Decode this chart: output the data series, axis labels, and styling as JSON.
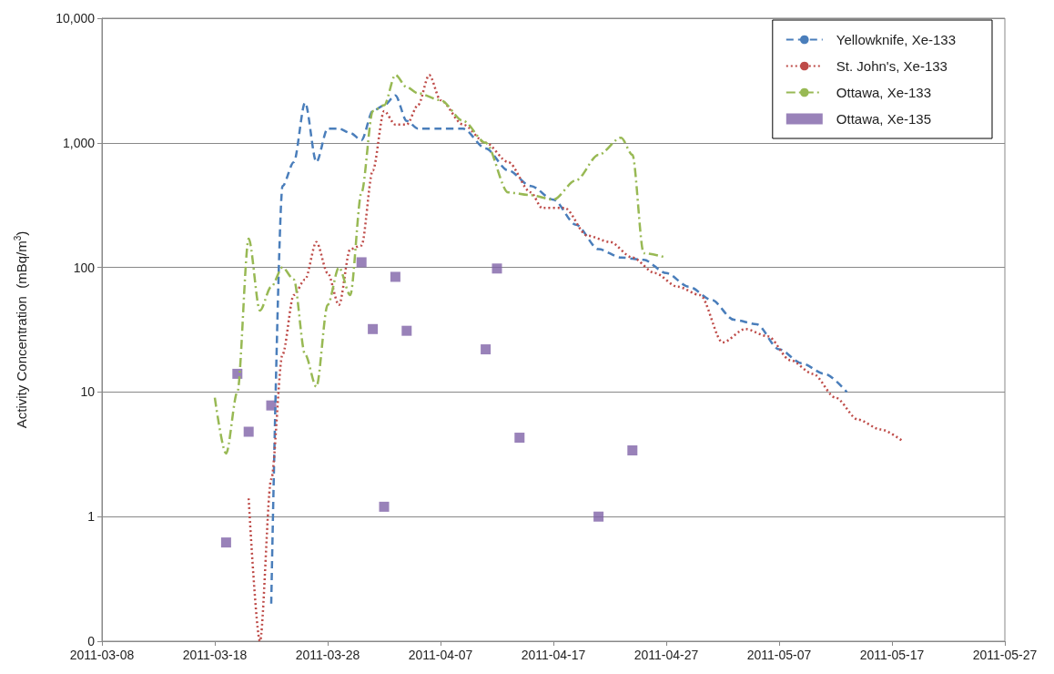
{
  "chart_data": {
    "type": "line",
    "ylabel": "Activity Concentration  (mBq/m$^{3}$)",
    "log": "y",
    "grid": "y",
    "legend": "top right",
    "xlim": [
      "2011-03-08",
      "2011-05-27"
    ],
    "xticks": [
      "2011-03-08",
      "2011-03-18",
      "2011-03-28",
      "2011-04-07",
      "2011-04-17",
      "2011-04-27",
      "2011-05-07",
      "2011-05-17",
      "2011-05-27"
    ],
    "ylim": [
      0.1,
      10000
    ],
    "yticks": [
      {
        "value": 0.1,
        "label": "0"
      },
      1,
      10,
      100,
      {
        "value": 1000,
        "label": "1,000"
      },
      {
        "value": 10000,
        "label": "10,000"
      }
    ],
    "series": [
      {
        "name": "Yellowknife, Xe-133",
        "color": "#4a7ebb",
        "line_style": "dashed",
        "marker": "none",
        "x": [
          "2011-03-23",
          "2011-03-24",
          "2011-03-25",
          "2011-03-26",
          "2011-03-27",
          "2011-03-28",
          "2011-03-29",
          "2011-03-30",
          "2011-03-31",
          "2011-04-01",
          "2011-04-02",
          "2011-04-03",
          "2011-04-04",
          "2011-04-05",
          "2011-04-07",
          "2011-04-09",
          "2011-04-11",
          "2011-04-13",
          "2011-04-15",
          "2011-04-17",
          "2011-04-19",
          "2011-04-21",
          "2011-04-23",
          "2011-04-25",
          "2011-04-27",
          "2011-04-29",
          "2011-05-01",
          "2011-05-03",
          "2011-05-05",
          "2011-05-07",
          "2011-05-09",
          "2011-05-11",
          "2011-05-13"
        ],
        "values": [
          0.2,
          450,
          700,
          2100,
          700,
          1300,
          1300,
          1200,
          1050,
          1800,
          2000,
          2400,
          1500,
          1300,
          1300,
          1300,
          900,
          600,
          450,
          350,
          220,
          140,
          120,
          115,
          90,
          70,
          55,
          38,
          35,
          22,
          17,
          14,
          10
        ]
      },
      {
        "name": "St. John's, Xe-133",
        "color": "#be4b48",
        "line_style": "dotted",
        "marker": "none",
        "x": [
          "2011-03-21",
          "2011-03-22",
          "2011-03-23",
          "2011-03-24",
          "2011-03-25",
          "2011-03-26",
          "2011-03-27",
          "2011-03-28",
          "2011-03-29",
          "2011-03-30",
          "2011-03-31",
          "2011-04-01",
          "2011-04-02",
          "2011-04-03",
          "2011-04-04",
          "2011-04-05",
          "2011-04-06",
          "2011-04-07",
          "2011-04-09",
          "2011-04-11",
          "2011-04-13",
          "2011-04-15",
          "2011-04-16",
          "2011-04-18",
          "2011-04-20",
          "2011-04-22",
          "2011-04-24",
          "2011-04-26",
          "2011-04-28",
          "2011-04-30",
          "2011-05-02",
          "2011-05-04",
          "2011-05-06",
          "2011-05-08",
          "2011-05-10",
          "2011-05-12",
          "2011-05-14",
          "2011-05-16",
          "2011-05-18"
        ],
        "values": [
          1.4,
          0.1,
          2,
          20,
          60,
          80,
          160,
          90,
          50,
          140,
          150,
          600,
          1800,
          1400,
          1400,
          2000,
          3500,
          2200,
          1400,
          1000,
          700,
          400,
          300,
          300,
          180,
          160,
          120,
          90,
          70,
          60,
          25,
          32,
          28,
          18,
          14,
          9,
          6,
          5,
          4
        ]
      },
      {
        "name": "Ottawa, Xe-133",
        "color": "#98b954",
        "line_style": "dashdot",
        "marker": "none",
        "x": [
          "2011-03-18",
          "2011-03-19",
          "2011-03-20",
          "2011-03-21",
          "2011-03-22",
          "2011-03-23",
          "2011-03-24",
          "2011-03-25",
          "2011-03-26",
          "2011-03-27",
          "2011-03-28",
          "2011-03-29",
          "2011-03-30",
          "2011-03-31",
          "2011-04-01",
          "2011-04-02",
          "2011-04-03",
          "2011-04-04",
          "2011-04-05",
          "2011-04-07",
          "2011-04-09",
          "2011-04-11",
          "2011-04-13",
          "2011-04-15",
          "2011-04-17",
          "2011-04-19",
          "2011-04-21",
          "2011-04-23",
          "2011-04-24",
          "2011-04-25",
          "2011-04-27"
        ],
        "values": [
          9,
          3.2,
          10,
          170,
          45,
          70,
          100,
          80,
          20,
          11,
          50,
          100,
          60,
          400,
          1800,
          2000,
          3500,
          2800,
          2500,
          2200,
          1500,
          1000,
          400,
          380,
          350,
          500,
          800,
          1100,
          800,
          130,
          120
        ]
      },
      {
        "name": "Ottawa, Xe-135",
        "type": "scatter",
        "color": "#7f63a8",
        "marker": "square",
        "x": [
          "2011-03-19",
          "2011-03-20",
          "2011-03-21",
          "2011-03-23",
          "2011-03-31",
          "2011-04-01",
          "2011-04-02",
          "2011-04-03",
          "2011-04-04",
          "2011-04-11",
          "2011-04-12",
          "2011-04-14",
          "2011-04-21",
          "2011-04-24"
        ],
        "values": [
          0.62,
          14,
          4.8,
          7.8,
          110,
          32,
          1.2,
          84,
          31,
          22,
          98,
          4.3,
          1.0,
          3.4
        ]
      }
    ]
  }
}
